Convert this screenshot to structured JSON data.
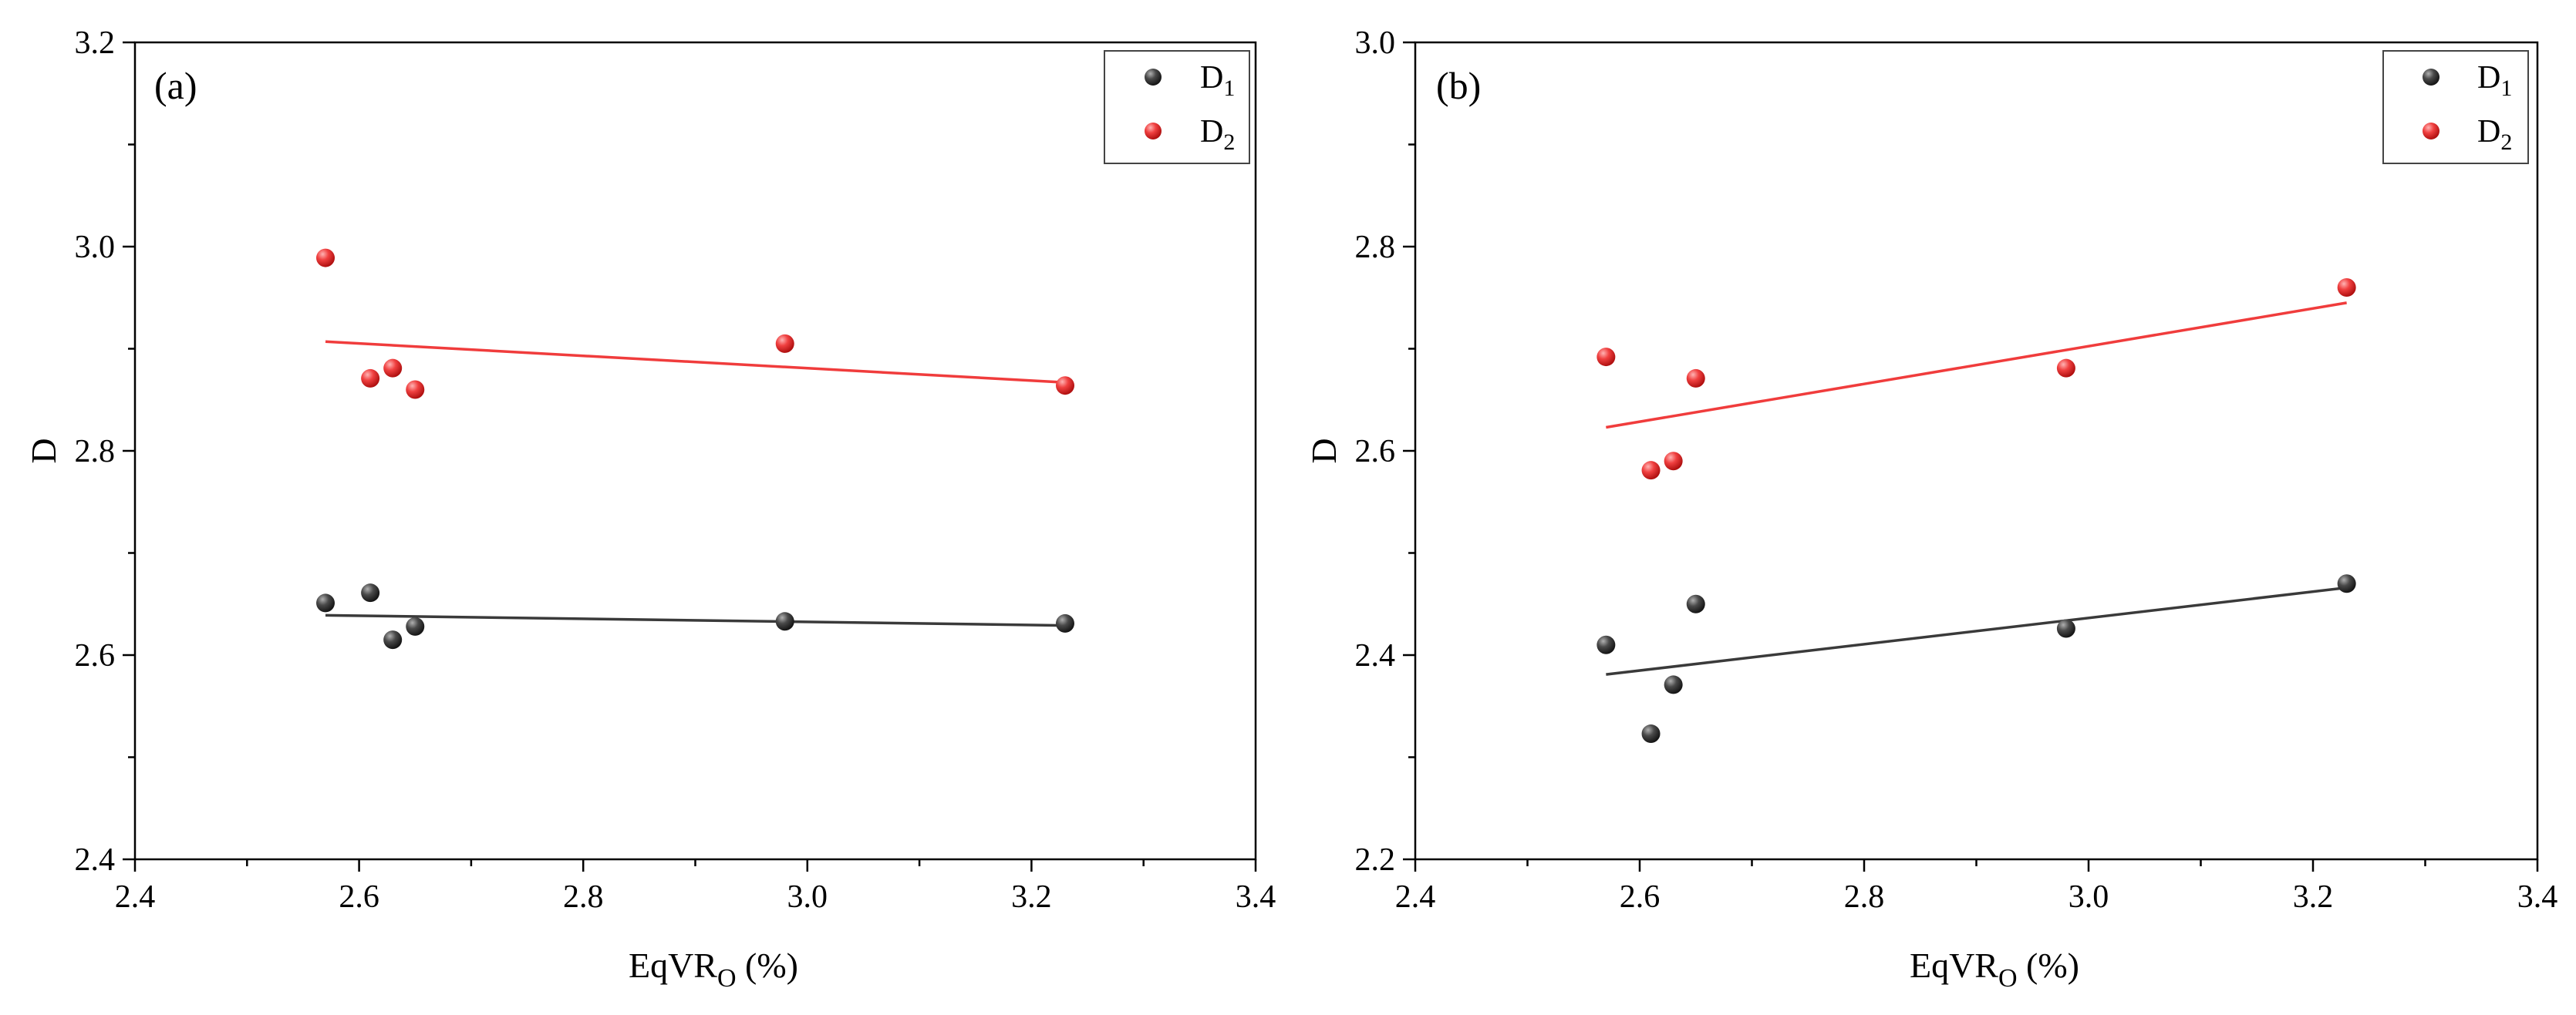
{
  "chart_data": [
    {
      "type": "scatter",
      "panel_label": "(a)",
      "xlabel": {
        "main": "EqVR",
        "sub": "O",
        "suffix": " (%)"
      },
      "ylabel": "D",
      "xlim": [
        2.4,
        3.4
      ],
      "ylim": [
        2.4,
        3.2
      ],
      "x_ticks": [
        2.4,
        2.6,
        2.8,
        3.0,
        3.2,
        3.4
      ],
      "x_tick_labels": [
        "2.4",
        "2.6",
        "2.8",
        "3.0",
        "3.2",
        "3.4"
      ],
      "y_ticks": [
        2.4,
        2.6,
        2.8,
        3.0,
        3.2
      ],
      "y_tick_labels": [
        "2.4",
        "2.6",
        "2.8",
        "3.0",
        "3.2"
      ],
      "legend_position": "top-right",
      "series": [
        {
          "name": "D1",
          "label_main": "D",
          "label_sub": "1",
          "color": "#3a3a3a",
          "x": [
            2.57,
            2.61,
            2.63,
            2.65,
            2.98,
            3.23
          ],
          "y": [
            2.651,
            2.661,
            2.615,
            2.628,
            2.633,
            2.631
          ],
          "fit": {
            "x": [
              2.57,
              3.23
            ],
            "y": [
              2.639,
              2.629
            ]
          }
        },
        {
          "name": "D2",
          "label_main": "D",
          "label_sub": "2",
          "color": "#f03c3c",
          "x": [
            2.57,
            2.61,
            2.63,
            2.65,
            2.98,
            3.23
          ],
          "y": [
            2.989,
            2.871,
            2.881,
            2.86,
            2.905,
            2.864
          ],
          "fit": {
            "x": [
              2.57,
              3.23
            ],
            "y": [
              2.907,
              2.867
            ]
          }
        }
      ]
    },
    {
      "type": "scatter",
      "panel_label": "(b)",
      "xlabel": {
        "main": "EqVR",
        "sub": "O",
        "suffix": " (%)"
      },
      "ylabel": "D",
      "xlim": [
        2.4,
        3.4
      ],
      "ylim": [
        2.2,
        3.0
      ],
      "x_ticks": [
        2.4,
        2.6,
        2.8,
        3.0,
        3.2,
        3.4
      ],
      "x_tick_labels": [
        "2.4",
        "2.6",
        "2.8",
        "3.0",
        "3.2",
        "3.4"
      ],
      "y_ticks": [
        2.2,
        2.4,
        2.6,
        2.8,
        3.0
      ],
      "y_tick_labels": [
        "2.2",
        "2.4",
        "2.6",
        "2.8",
        "3.0"
      ],
      "legend_position": "top-right",
      "series": [
        {
          "name": "D1",
          "label_main": "D",
          "label_sub": "1",
          "color": "#3a3a3a",
          "x": [
            2.57,
            2.61,
            2.63,
            2.65,
            2.98,
            3.23
          ],
          "y": [
            2.41,
            2.323,
            2.371,
            2.45,
            2.426,
            2.47
          ],
          "fit": {
            "x": [
              2.57,
              3.23
            ],
            "y": [
              2.381,
              2.466
            ]
          }
        },
        {
          "name": "D2",
          "label_main": "D",
          "label_sub": "2",
          "color": "#f03c3c",
          "x": [
            2.57,
            2.61,
            2.63,
            2.65,
            2.98,
            3.23
          ],
          "y": [
            2.692,
            2.581,
            2.59,
            2.671,
            2.681,
            2.76
          ],
          "fit": {
            "x": [
              2.57,
              3.23
            ],
            "y": [
              2.623,
              2.745
            ]
          }
        }
      ]
    }
  ]
}
